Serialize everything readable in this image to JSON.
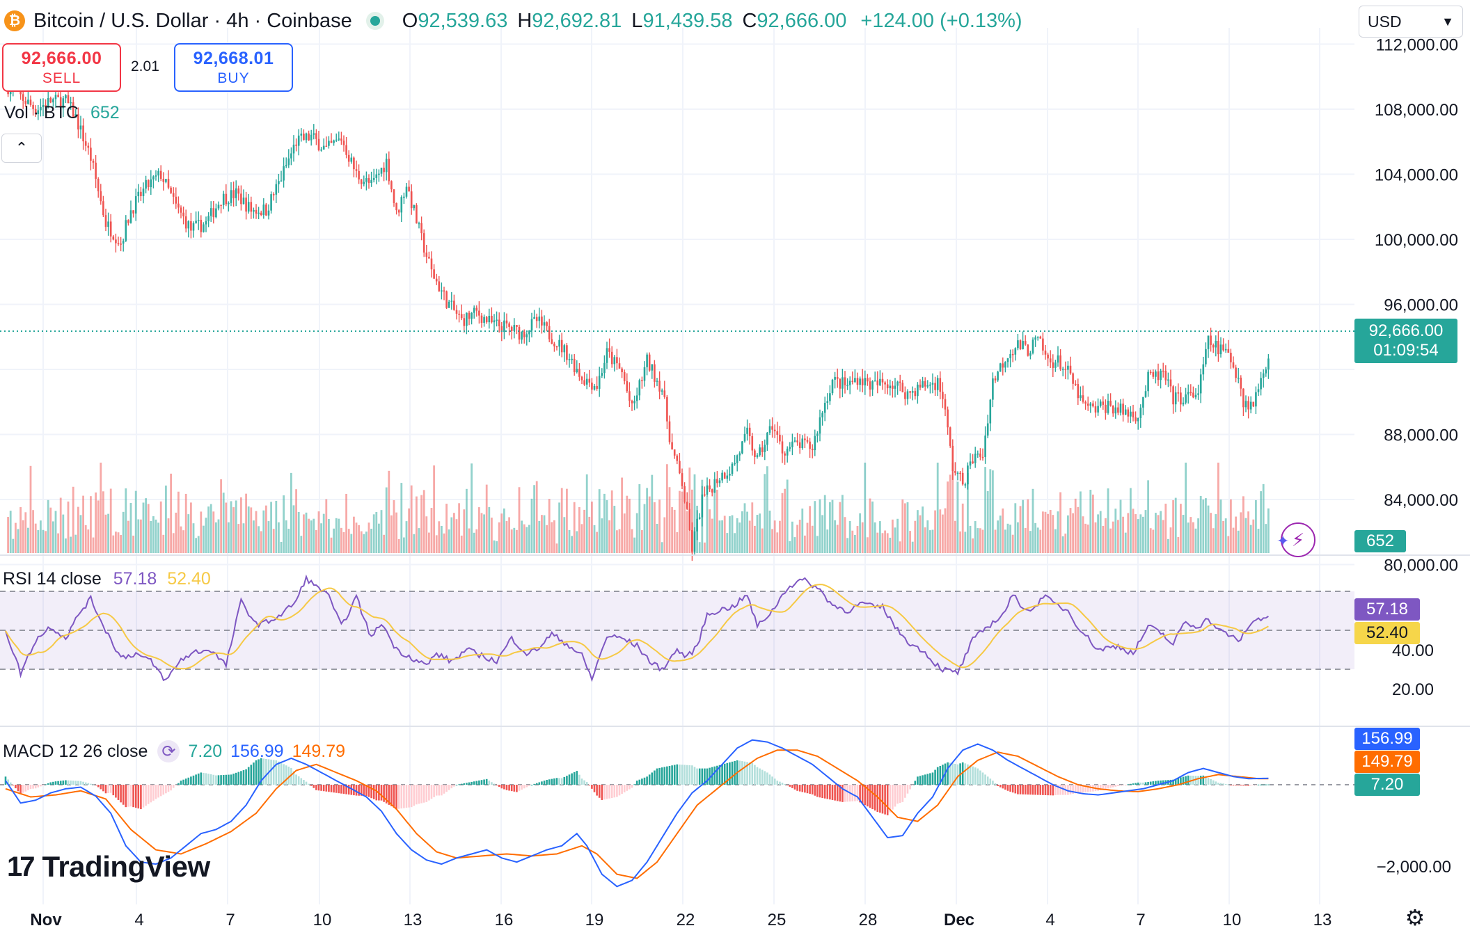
{
  "header": {
    "title": "Bitcoin / U.S. Dollar · 4h · Coinbase",
    "logo_glyph": "₿",
    "open_label": "O",
    "open": "92,539.63",
    "high_label": "H",
    "high": "92,692.81",
    "low_label": "L",
    "low": "91,439.58",
    "close_label": "C",
    "close": "92,666.00",
    "change": "+124.00 (+0.13%)",
    "up_color": "#26a69a",
    "down_color": "#ef5350"
  },
  "trade": {
    "sell_price": "92,666.00",
    "sell_label": "SELL",
    "buy_price": "92,668.01",
    "buy_label": "BUY",
    "spread": "2.01"
  },
  "volume_legend": {
    "label": "Vol · BTC",
    "value": "652"
  },
  "currency": {
    "selected": "USD"
  },
  "icons": {
    "collapse": "chevron-up-icon",
    "refresh": "refresh-icon",
    "settings": "gear-icon",
    "assistant": "lightning-assistant-icon"
  },
  "tags": {
    "last_price": "92,666.00",
    "countdown": "01:09:54",
    "volume": "652",
    "rsi": "57.18",
    "rsi_ma": "52.40",
    "macd_line": "156.99",
    "macd_signal": "149.79",
    "macd_hist": "7.20"
  },
  "rsi_legend": {
    "label": "RSI 14 close",
    "value": "57.18",
    "ma": "52.40"
  },
  "macd_legend": {
    "label": "MACD 12 26 close",
    "hist": "7.20",
    "macd": "156.99",
    "signal": "149.79"
  },
  "brand": {
    "name": "TradingView",
    "mark": "17"
  },
  "chart_data": {
    "type": "candlestick",
    "timeframe": "4h",
    "y_ticks": [
      "112,000.00",
      "108,000.00",
      "104,000.00",
      "100,000.00",
      "96,000.00",
      "88,000.00",
      "84,000.00",
      "80,000.00"
    ],
    "y_range": [
      77500,
      113000
    ],
    "x_ticks": [
      "Nov",
      "4",
      "7",
      "10",
      "13",
      "16",
      "19",
      "22",
      "25",
      "28",
      "Dec",
      "4",
      "7",
      "10",
      "13"
    ],
    "current_price": 92666,
    "candle_anchors": [
      [
        0,
        109500
      ],
      [
        12,
        108000
      ],
      [
        18,
        108500
      ],
      [
        24,
        108500
      ],
      [
        28,
        107500
      ],
      [
        34,
        105000
      ],
      [
        40,
        101000
      ],
      [
        46,
        99800
      ],
      [
        50,
        101800
      ],
      [
        56,
        103200
      ],
      [
        62,
        104000
      ],
      [
        68,
        102000
      ],
      [
        74,
        100600
      ],
      [
        80,
        101000
      ],
      [
        86,
        102500
      ],
      [
        92,
        102800
      ],
      [
        98,
        101800
      ],
      [
        104,
        101800
      ],
      [
        110,
        103800
      ],
      [
        116,
        106000
      ],
      [
        122,
        106300
      ],
      [
        128,
        105500
      ],
      [
        134,
        106200
      ],
      [
        140,
        104000
      ],
      [
        146,
        103300
      ],
      [
        152,
        104800
      ],
      [
        156,
        101500
      ],
      [
        160,
        103400
      ],
      [
        166,
        100000
      ],
      [
        170,
        98000
      ],
      [
        176,
        96200
      ],
      [
        182,
        95000
      ],
      [
        188,
        95500
      ],
      [
        194,
        94800
      ],
      [
        200,
        94600
      ],
      [
        206,
        94200
      ],
      [
        212,
        95000
      ],
      [
        218,
        94000
      ],
      [
        224,
        93000
      ],
      [
        230,
        91500
      ],
      [
        236,
        91000
      ],
      [
        240,
        93000
      ],
      [
        246,
        91800
      ],
      [
        250,
        89500
      ],
      [
        256,
        92500
      ],
      [
        262,
        90800
      ],
      [
        266,
        87000
      ],
      [
        270,
        85000
      ],
      [
        274,
        81000
      ],
      [
        278,
        84000
      ],
      [
        284,
        85300
      ],
      [
        290,
        86000
      ],
      [
        296,
        88000
      ],
      [
        300,
        86400
      ],
      [
        306,
        88600
      ],
      [
        310,
        87000
      ],
      [
        316,
        87400
      ],
      [
        322,
        87200
      ],
      [
        326,
        89500
      ],
      [
        330,
        91300
      ],
      [
        336,
        91000
      ],
      [
        340,
        91500
      ],
      [
        346,
        91000
      ],
      [
        352,
        91200
      ],
      [
        356,
        91000
      ],
      [
        360,
        90500
      ],
      [
        366,
        91000
      ],
      [
        372,
        91200
      ],
      [
        374,
        90400
      ],
      [
        378,
        86000
      ],
      [
        382,
        85000
      ],
      [
        386,
        86500
      ],
      [
        390,
        86800
      ],
      [
        394,
        91300
      ],
      [
        400,
        93000
      ],
      [
        404,
        93500
      ],
      [
        408,
        93200
      ],
      [
        412,
        93800
      ],
      [
        416,
        92500
      ],
      [
        420,
        92500
      ],
      [
        424,
        91800
      ],
      [
        430,
        89800
      ],
      [
        434,
        89500
      ],
      [
        440,
        89800
      ],
      [
        446,
        89400
      ],
      [
        452,
        89200
      ],
      [
        456,
        91400
      ],
      [
        462,
        91700
      ],
      [
        466,
        90200
      ],
      [
        472,
        90300
      ],
      [
        476,
        90600
      ],
      [
        480,
        93700
      ],
      [
        484,
        93300
      ],
      [
        488,
        92900
      ],
      [
        492,
        91600
      ],
      [
        494,
        90000
      ],
      [
        498,
        89800
      ],
      [
        502,
        92100
      ],
      [
        504,
        92666
      ]
    ],
    "rsi": {
      "ticks": [
        "20.00",
        "40.00"
      ],
      "range": [
        18,
        85
      ],
      "upper_band": 70,
      "middle": 50,
      "lower_band": 30,
      "anchors": [
        [
          0,
          50
        ],
        [
          6,
          28
        ],
        [
          12,
          45
        ],
        [
          18,
          52
        ],
        [
          24,
          46
        ],
        [
          30,
          60
        ],
        [
          34,
          66
        ],
        [
          40,
          50
        ],
        [
          46,
          36
        ],
        [
          52,
          38
        ],
        [
          58,
          34
        ],
        [
          64,
          24
        ],
        [
          70,
          35
        ],
        [
          76,
          39
        ],
        [
          82,
          40
        ],
        [
          88,
          32
        ],
        [
          94,
          65
        ],
        [
          100,
          53
        ],
        [
          104,
          54
        ],
        [
          110,
          58
        ],
        [
          116,
          65
        ],
        [
          120,
          77
        ],
        [
          124,
          72
        ],
        [
          128,
          70
        ],
        [
          134,
          52
        ],
        [
          140,
          67
        ],
        [
          146,
          46
        ],
        [
          150,
          54
        ],
        [
          156,
          40
        ],
        [
          162,
          36
        ],
        [
          168,
          32
        ],
        [
          172,
          38
        ],
        [
          178,
          34
        ],
        [
          184,
          40
        ],
        [
          190,
          37
        ],
        [
          196,
          34
        ],
        [
          202,
          46
        ],
        [
          208,
          38
        ],
        [
          212,
          40
        ],
        [
          218,
          48
        ],
        [
          224,
          43
        ],
        [
          230,
          37
        ],
        [
          234,
          25
        ],
        [
          240,
          47
        ],
        [
          246,
          46
        ],
        [
          252,
          42
        ],
        [
          258,
          33
        ],
        [
          262,
          30
        ],
        [
          268,
          40
        ],
        [
          272,
          36
        ],
        [
          276,
          42
        ],
        [
          280,
          58
        ],
        [
          284,
          60
        ],
        [
          290,
          62
        ],
        [
          296,
          68
        ],
        [
          300,
          52
        ],
        [
          306,
          60
        ],
        [
          312,
          72
        ],
        [
          318,
          76
        ],
        [
          324,
          72
        ],
        [
          330,
          63
        ],
        [
          336,
          60
        ],
        [
          342,
          64
        ],
        [
          346,
          62
        ],
        [
          350,
          62
        ],
        [
          356,
          50
        ],
        [
          362,
          42
        ],
        [
          366,
          40
        ],
        [
          370,
          34
        ],
        [
          374,
          30
        ],
        [
          380,
          28
        ],
        [
          386,
          45
        ],
        [
          392,
          52
        ],
        [
          398,
          58
        ],
        [
          402,
          68
        ],
        [
          406,
          62
        ],
        [
          410,
          60
        ],
        [
          414,
          68
        ],
        [
          418,
          64
        ],
        [
          424,
          60
        ],
        [
          428,
          52
        ],
        [
          436,
          40
        ],
        [
          444,
          42
        ],
        [
          450,
          38
        ],
        [
          456,
          52
        ],
        [
          462,
          48
        ],
        [
          466,
          42
        ],
        [
          470,
          54
        ],
        [
          476,
          52
        ],
        [
          480,
          56
        ],
        [
          484,
          50
        ],
        [
          488,
          48
        ],
        [
          492,
          44
        ],
        [
          496,
          52
        ],
        [
          500,
          56
        ],
        [
          504,
          57.18
        ]
      ]
    },
    "macd": {
      "ticks": [
        "-2,000.00"
      ],
      "range": [
        -2700,
        1350
      ],
      "anchors_macd": [
        [
          0,
          100
        ],
        [
          6,
          -450
        ],
        [
          12,
          -380
        ],
        [
          18,
          -200
        ],
        [
          24,
          -100
        ],
        [
          30,
          -60
        ],
        [
          36,
          -280
        ],
        [
          42,
          -700
        ],
        [
          48,
          -1500
        ],
        [
          54,
          -1900
        ],
        [
          60,
          -1950
        ],
        [
          66,
          -1800
        ],
        [
          72,
          -1500
        ],
        [
          78,
          -1200
        ],
        [
          84,
          -1100
        ],
        [
          90,
          -900
        ],
        [
          96,
          -500
        ],
        [
          102,
          100
        ],
        [
          108,
          500
        ],
        [
          114,
          650
        ],
        [
          120,
          500
        ],
        [
          126,
          300
        ],
        [
          132,
          100
        ],
        [
          138,
          -100
        ],
        [
          144,
          -300
        ],
        [
          150,
          -650
        ],
        [
          156,
          -1200
        ],
        [
          162,
          -1600
        ],
        [
          168,
          -1850
        ],
        [
          174,
          -1950
        ],
        [
          180,
          -1800
        ],
        [
          186,
          -1700
        ],
        [
          192,
          -1600
        ],
        [
          198,
          -1800
        ],
        [
          204,
          -1900
        ],
        [
          210,
          -1750
        ],
        [
          216,
          -1600
        ],
        [
          222,
          -1500
        ],
        [
          228,
          -1200
        ],
        [
          232,
          -1500
        ],
        [
          238,
          -2200
        ],
        [
          244,
          -2500
        ],
        [
          250,
          -2350
        ],
        [
          256,
          -1900
        ],
        [
          262,
          -1300
        ],
        [
          268,
          -700
        ],
        [
          274,
          -200
        ],
        [
          280,
          100
        ],
        [
          286,
          500
        ],
        [
          292,
          900
        ],
        [
          298,
          1100
        ],
        [
          304,
          1050
        ],
        [
          310,
          900
        ],
        [
          316,
          700
        ],
        [
          322,
          500
        ],
        [
          328,
          200
        ],
        [
          334,
          -100
        ],
        [
          340,
          -300
        ],
        [
          346,
          -800
        ],
        [
          352,
          -1300
        ],
        [
          358,
          -1250
        ],
        [
          364,
          -700
        ],
        [
          370,
          -300
        ],
        [
          376,
          400
        ],
        [
          382,
          850
        ],
        [
          388,
          1000
        ],
        [
          394,
          850
        ],
        [
          400,
          600
        ],
        [
          406,
          400
        ],
        [
          412,
          200
        ],
        [
          418,
          0
        ],
        [
          424,
          -150
        ],
        [
          430,
          -220
        ],
        [
          436,
          -250
        ],
        [
          442,
          -200
        ],
        [
          448,
          -150
        ],
        [
          454,
          -100
        ],
        [
          460,
          0
        ],
        [
          466,
          100
        ],
        [
          472,
          300
        ],
        [
          478,
          400
        ],
        [
          484,
          300
        ],
        [
          490,
          200
        ],
        [
          496,
          150
        ],
        [
          504,
          156.99
        ]
      ],
      "anchors_signal": [
        [
          0,
          -100
        ],
        [
          10,
          -300
        ],
        [
          20,
          -250
        ],
        [
          30,
          -150
        ],
        [
          40,
          -350
        ],
        [
          50,
          -1100
        ],
        [
          60,
          -1600
        ],
        [
          70,
          -1700
        ],
        [
          80,
          -1450
        ],
        [
          90,
          -1150
        ],
        [
          100,
          -700
        ],
        [
          108,
          -100
        ],
        [
          116,
          350
        ],
        [
          124,
          500
        ],
        [
          132,
          300
        ],
        [
          140,
          100
        ],
        [
          148,
          -150
        ],
        [
          156,
          -600
        ],
        [
          164,
          -1200
        ],
        [
          172,
          -1650
        ],
        [
          180,
          -1800
        ],
        [
          190,
          -1750
        ],
        [
          200,
          -1700
        ],
        [
          210,
          -1750
        ],
        [
          220,
          -1700
        ],
        [
          230,
          -1500
        ],
        [
          236,
          -1700
        ],
        [
          244,
          -2200
        ],
        [
          252,
          -2300
        ],
        [
          260,
          -1900
        ],
        [
          268,
          -1200
        ],
        [
          276,
          -500
        ],
        [
          284,
          -100
        ],
        [
          292,
          300
        ],
        [
          300,
          650
        ],
        [
          308,
          850
        ],
        [
          316,
          850
        ],
        [
          324,
          700
        ],
        [
          332,
          400
        ],
        [
          340,
          100
        ],
        [
          348,
          -300
        ],
        [
          356,
          -800
        ],
        [
          364,
          -900
        ],
        [
          372,
          -500
        ],
        [
          380,
          200
        ],
        [
          388,
          600
        ],
        [
          396,
          800
        ],
        [
          404,
          700
        ],
        [
          412,
          450
        ],
        [
          420,
          200
        ],
        [
          428,
          0
        ],
        [
          436,
          -100
        ],
        [
          444,
          -150
        ],
        [
          452,
          -170
        ],
        [
          460,
          -100
        ],
        [
          468,
          0
        ],
        [
          476,
          150
        ],
        [
          484,
          250
        ],
        [
          492,
          200
        ],
        [
          500,
          150
        ],
        [
          504,
          149.79
        ]
      ]
    }
  }
}
